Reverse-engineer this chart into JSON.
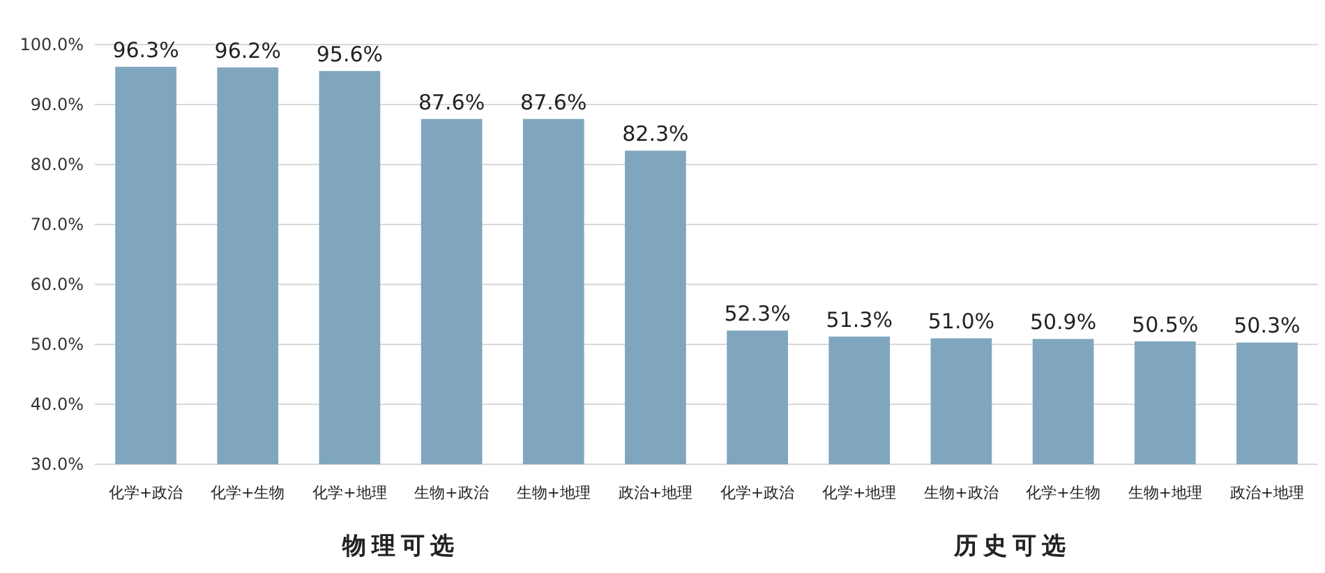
{
  "chart_data": {
    "type": "bar",
    "categories": [
      "化学+政治",
      "化学+生物",
      "化学+地理",
      "生物+政治",
      "生物+地理",
      "政治+地理",
      "化学+政治",
      "化学+地理",
      "生物+政治",
      "化学+生物",
      "生物+地理",
      "政治+地理"
    ],
    "values": [
      96.3,
      96.2,
      95.6,
      87.6,
      87.6,
      82.3,
      52.3,
      51.3,
      51.0,
      50.9,
      50.5,
      50.3
    ],
    "value_labels": [
      "96.3%",
      "96.2%",
      "95.6%",
      "87.6%",
      "87.6%",
      "82.3%",
      "52.3%",
      "51.3%",
      "51.0%",
      "50.9%",
      "50.5%",
      "50.3%"
    ],
    "color": "#7fa6be",
    "ylim": [
      30,
      100
    ],
    "yticks": [
      {
        "value": 30,
        "label": "30.0%"
      },
      {
        "value": 40,
        "label": "40.0%"
      },
      {
        "value": 50,
        "label": "50.0%"
      },
      {
        "value": 60,
        "label": "60.0%"
      },
      {
        "value": 70,
        "label": "70.0%"
      },
      {
        "value": 80,
        "label": "80.0%"
      },
      {
        "value": 90,
        "label": "90.0%"
      },
      {
        "value": 100,
        "label": "100.0%"
      }
    ],
    "grid": "y",
    "annotations": [
      "物理可选",
      "历史可选"
    ]
  }
}
